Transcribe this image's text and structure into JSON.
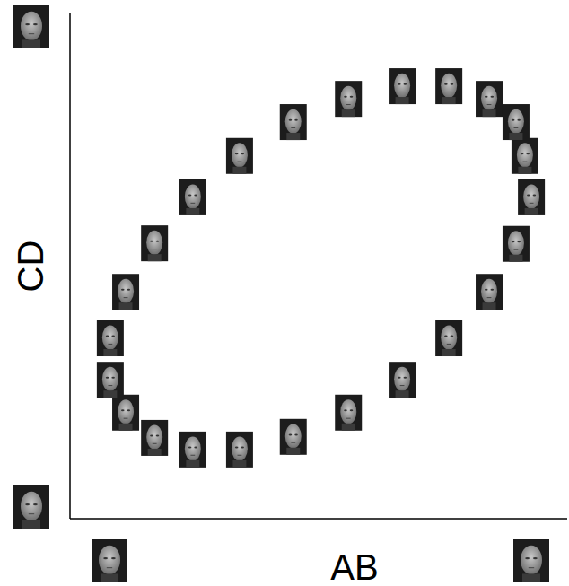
{
  "chart_data": {
    "type": "scatter",
    "x_label": "AB",
    "y_label": "CD",
    "x": [
      0.915,
      0.928,
      0.897,
      0.843,
      0.762,
      0.668,
      0.56,
      0.449,
      0.341,
      0.247,
      0.17,
      0.112,
      0.081,
      0.081,
      0.112,
      0.17,
      0.247,
      0.341,
      0.449,
      0.56,
      0.668,
      0.762,
      0.843,
      0.897
    ],
    "values": [
      0.718,
      0.636,
      0.544,
      0.449,
      0.357,
      0.275,
      0.21,
      0.162,
      0.137,
      0.137,
      0.16,
      0.21,
      0.275,
      0.357,
      0.449,
      0.545,
      0.636,
      0.718,
      0.785,
      0.831,
      0.856,
      0.856,
      0.831,
      0.785
    ],
    "xlim": [
      0,
      1
    ],
    "ylim": [
      0,
      1
    ],
    "tick_labels": false,
    "grid": false,
    "marker": "face"
  }
}
